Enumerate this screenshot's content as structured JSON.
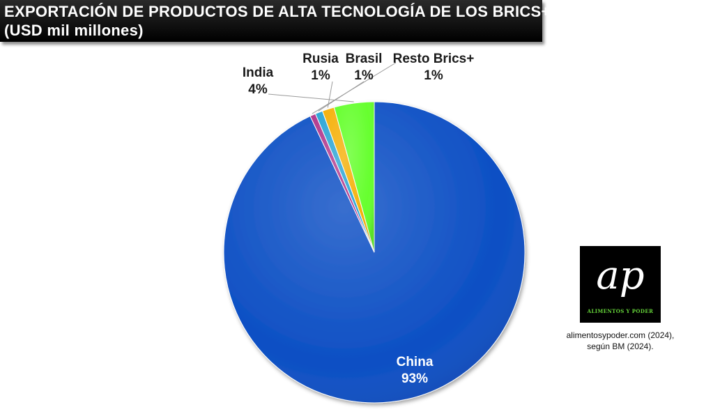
{
  "header": {
    "title_line1": "EXPORTACIÓN DE PRODUCTOS DE ALTA TECNOLOGÍA DE LOS BRICS+",
    "title_line2": "(USD mil millones)"
  },
  "chart_data": {
    "type": "pie",
    "title": "EXPORTACIÓN DE PRODUCTOS DE ALTA TECNOLOGÍA DE LOS BRICS+ (USD mil millones)",
    "start": "top, clockwise",
    "slices": [
      {
        "label": "China",
        "percent": 93,
        "display": "93%",
        "color": "#0d4fc4"
      },
      {
        "label": "Resto Brics+",
        "percent": 0.6,
        "display": "1%",
        "color": "#b23a8e"
      },
      {
        "label": "Brasil",
        "percent": 0.8,
        "display": "1%",
        "color": "#2fa6d6"
      },
      {
        "label": "Rusia",
        "percent": 1.3,
        "display": "1%",
        "color": "#f5b10c"
      },
      {
        "label": "India",
        "percent": 4.3,
        "display": "4%",
        "color": "#66ff2e"
      }
    ]
  },
  "logo": {
    "mark": "ap",
    "text": "ALIMENTOS Y PODER"
  },
  "source": {
    "line1": "alimentosypoder.com (2024),",
    "line2": "según BM (2024)."
  }
}
